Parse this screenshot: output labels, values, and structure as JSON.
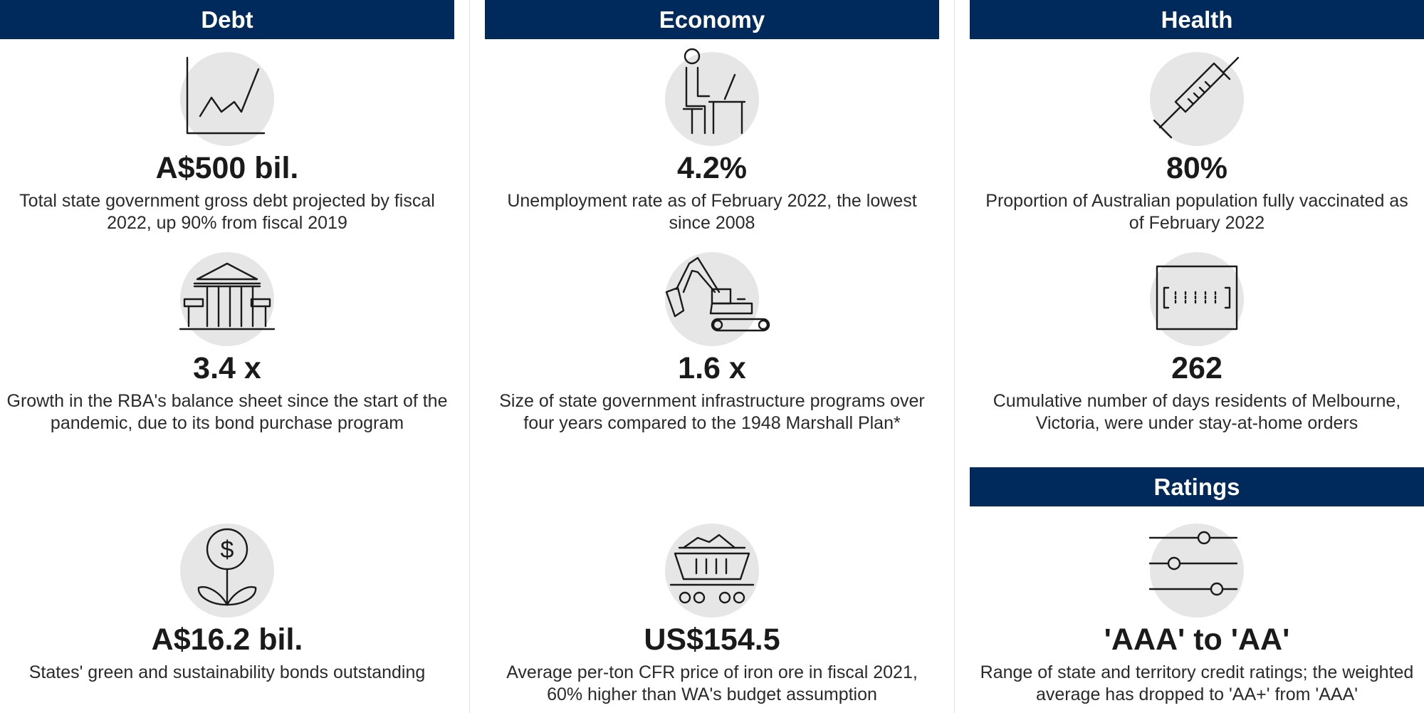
{
  "sections": {
    "debt": "Debt",
    "economy": "Economy",
    "health": "Health",
    "ratings": "Ratings"
  },
  "stats": {
    "debt_total": {
      "icon": "line-chart-icon",
      "value": "A$500 bil.",
      "text": "Total state government gross debt projected by fiscal 2022, up 90% from fiscal 2019"
    },
    "rba_balance": {
      "icon": "bank-building-icon",
      "value": "3.4 x",
      "text": "Growth in the RBA's balance sheet since the start of the pandemic, due to its bond purchase program"
    },
    "green_bonds": {
      "icon": "money-plant-icon",
      "value": "A$16.2 bil.",
      "text": "States' green and sustainability bonds outstanding"
    },
    "unemployment": {
      "icon": "person-at-desk-icon",
      "value": "4.2%",
      "text": "Unemployment rate as of February 2022, the lowest since 2008"
    },
    "infrastructure": {
      "icon": "excavator-icon",
      "value": "1.6 x",
      "text": "Size of state government infrastructure programs over four years compared to the 1948 Marshall Plan*"
    },
    "iron_ore": {
      "icon": "ore-cart-icon",
      "value": "US$154.5",
      "text": "Average per-ton CFR price of iron ore in fiscal 2021, 60% higher than WA's budget assumption"
    },
    "vaccinated": {
      "icon": "syringe-icon",
      "value": "80%",
      "text": "Proportion of Australian population fully vaccinated as of February 2022"
    },
    "lockdown": {
      "icon": "calendar-days-icon",
      "value": "262",
      "text": "Cumulative number of days residents of Melbourne, Victoria, were under stay-at-home orders"
    },
    "ratings_range": {
      "icon": "sliders-icon",
      "value": "'AAA' to 'AA'",
      "text": "Range of state and territory credit ratings; the weighted average has dropped to 'AA+' from 'AAA'"
    }
  },
  "colors": {
    "header_bg": "#002a5c",
    "header_text": "#ffffff",
    "icon_circle": "#e6e6e6",
    "text": "#1a1a1a"
  }
}
